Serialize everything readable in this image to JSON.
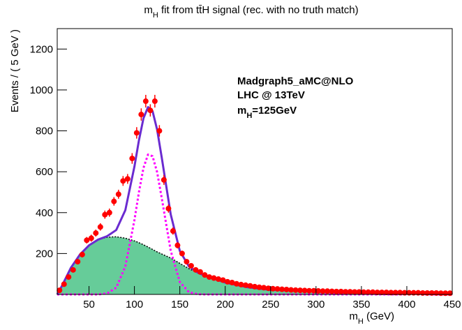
{
  "chart_data": {
    "type": "fit",
    "title_parts": [
      "m",
      "H",
      " fit from tt̄H signal (rec. with no truth match)"
    ],
    "x_label_parts": [
      "m",
      "H",
      " (GeV)"
    ],
    "y_label": "Events / ( 5 GeV )",
    "annotations": [
      "Madgraph5_aMC@NLO",
      "LHC @ 13TeV"
    ],
    "annotation_parts": [
      "m",
      "H",
      "=125GeV"
    ],
    "xlim": [
      15,
      450
    ],
    "xticks": [
      50,
      100,
      150,
      200,
      250,
      300,
      350,
      400,
      450
    ],
    "ylim": [
      0,
      1300
    ],
    "yticks": [
      200,
      400,
      600,
      800,
      1000,
      1200
    ],
    "series": [
      {
        "style": "area",
        "color": "#66cc99",
        "edge_color": "#000000",
        "x": [
          15,
          20,
          30,
          40,
          50,
          60,
          70,
          80,
          90,
          100,
          105,
          110,
          115,
          120,
          125,
          130,
          140,
          150,
          160,
          170,
          180,
          200,
          225,
          250,
          300,
          350,
          400,
          450
        ],
        "values": [
          0,
          40,
          130,
          195,
          240,
          268,
          280,
          282,
          275,
          262,
          253,
          243,
          232,
          220,
          208,
          198,
          178,
          152,
          126,
          105,
          88,
          58,
          35,
          22,
          17,
          11,
          8,
          6
        ]
      },
      {
        "style": "dotted",
        "color": "#ff00ff",
        "x": [
          15,
          20,
          30,
          40,
          50,
          60,
          70,
          80,
          90,
          100,
          105,
          110,
          115,
          120,
          125,
          130,
          140,
          150,
          160,
          170,
          180,
          200,
          225,
          250,
          300,
          350,
          400,
          450
        ],
        "values": [
          0,
          0,
          0,
          0,
          0,
          0,
          5,
          33,
          137,
          363,
          501,
          619,
          684,
          676,
          598,
          474,
          213,
          61,
          11,
          1,
          0,
          0,
          0,
          0,
          0,
          0,
          0,
          0
        ]
      },
      {
        "style": "line",
        "color": "#6a2bd0",
        "x": [
          15,
          20,
          30,
          40,
          50,
          60,
          70,
          80,
          90,
          100,
          105,
          110,
          115,
          120,
          125,
          130,
          140,
          150,
          160,
          170,
          180,
          200,
          225,
          250,
          300,
          350,
          400,
          450
        ],
        "values": [
          0,
          40,
          130,
          195,
          240,
          268,
          285,
          315,
          412,
          625,
          754,
          862,
          916,
          896,
          806,
          672,
          391,
          213,
          137,
          106,
          88,
          58,
          35,
          22,
          17,
          11,
          8,
          6
        ]
      },
      {
        "style": "points",
        "color": "#ff0000",
        "x": [
          17.5,
          22.5,
          27.5,
          32.5,
          37.5,
          42.5,
          47.5,
          52.5,
          57.5,
          62.5,
          67.5,
          72.5,
          77.5,
          82.5,
          87.5,
          92.5,
          97.5,
          102.5,
          107.5,
          112.5,
          117.5,
          122.5,
          127.5,
          132.5,
          137.5,
          142.5,
          147.5,
          152.5,
          157.5,
          162.5,
          167.5,
          172.5,
          177.5,
          182.5,
          187.5,
          192.5,
          197.5,
          202.5,
          207.5,
          212.5,
          217.5,
          222.5,
          227.5,
          232.5,
          237.5,
          242.5,
          247.5,
          252.5,
          257.5,
          262.5,
          267.5,
          272.5,
          277.5,
          282.5,
          287.5,
          292.5,
          297.5,
          302.5,
          307.5,
          312.5,
          317.5,
          322.5,
          327.5,
          332.5,
          337.5,
          342.5,
          347.5,
          352.5,
          357.5,
          362.5,
          367.5,
          372.5,
          377.5,
          382.5,
          387.5,
          392.5,
          397.5,
          402.5,
          407.5,
          412.5,
          417.5,
          422.5,
          427.5,
          432.5,
          437.5,
          442.5,
          447.5
        ],
        "values": [
          20,
          50,
          85,
          120,
          160,
          195,
          265,
          275,
          300,
          330,
          390,
          400,
          455,
          490,
          555,
          565,
          665,
          790,
          880,
          945,
          900,
          945,
          800,
          560,
          420,
          310,
          240,
          200,
          160,
          140,
          120,
          110,
          95,
          85,
          80,
          75,
          70,
          62,
          58,
          52,
          48,
          45,
          42,
          38,
          35,
          33,
          30,
          28,
          27,
          25,
          24,
          22,
          21,
          20,
          19,
          18,
          18,
          17,
          16,
          16,
          15,
          14,
          14,
          13,
          13,
          12,
          12,
          11,
          11,
          11,
          10,
          10,
          10,
          9,
          9,
          9,
          8,
          8,
          8,
          8,
          7,
          7,
          7,
          7,
          6,
          6,
          6
        ],
        "errors": [
          4,
          7,
          9,
          11,
          13,
          14,
          16,
          17,
          17,
          18,
          20,
          20,
          21,
          22,
          24,
          24,
          26,
          28,
          30,
          31,
          30,
          31,
          28,
          24,
          20,
          18,
          15,
          14,
          13,
          12,
          11,
          10,
          10,
          9,
          9,
          9,
          8,
          8,
          8,
          7,
          7,
          7,
          6,
          6,
          6,
          6,
          5,
          5,
          5,
          5,
          5,
          5,
          5,
          4,
          4,
          4,
          4,
          4,
          4,
          4,
          4,
          4,
          4,
          4,
          4,
          3,
          3,
          3,
          3,
          3,
          3,
          3,
          3,
          3,
          3,
          3,
          3,
          3,
          3,
          3,
          3,
          3,
          3,
          3,
          2,
          2,
          2
        ]
      }
    ]
  }
}
